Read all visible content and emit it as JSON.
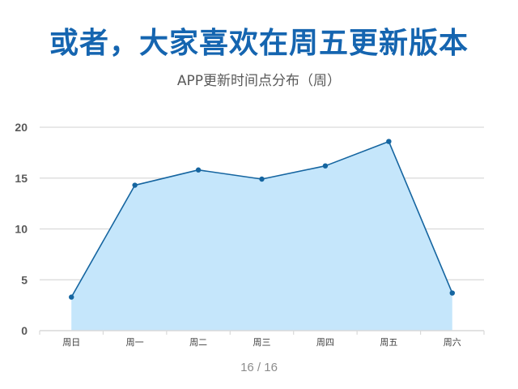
{
  "colors": {
    "title": "#1565b0",
    "line": "#1565a0",
    "area": "#c5e6fb",
    "grid": "#d9d9d9"
  },
  "chart_data": {
    "type": "area",
    "title": "或者，大家喜欢在周五更新版本",
    "subtitle": "APP更新时间点分布（周）",
    "categories": [
      "周日",
      "周一",
      "周二",
      "周三",
      "周四",
      "周五",
      "周六"
    ],
    "series": [
      {
        "values": [
          3.3,
          14.3,
          15.8,
          14.9,
          16.2,
          18.6,
          3.7
        ]
      }
    ],
    "yticks": [
      0,
      5,
      10,
      15,
      20
    ],
    "ylim": [
      0,
      20
    ],
    "grid": true,
    "legend": "none"
  },
  "footer": {
    "page": "16 / 16"
  }
}
